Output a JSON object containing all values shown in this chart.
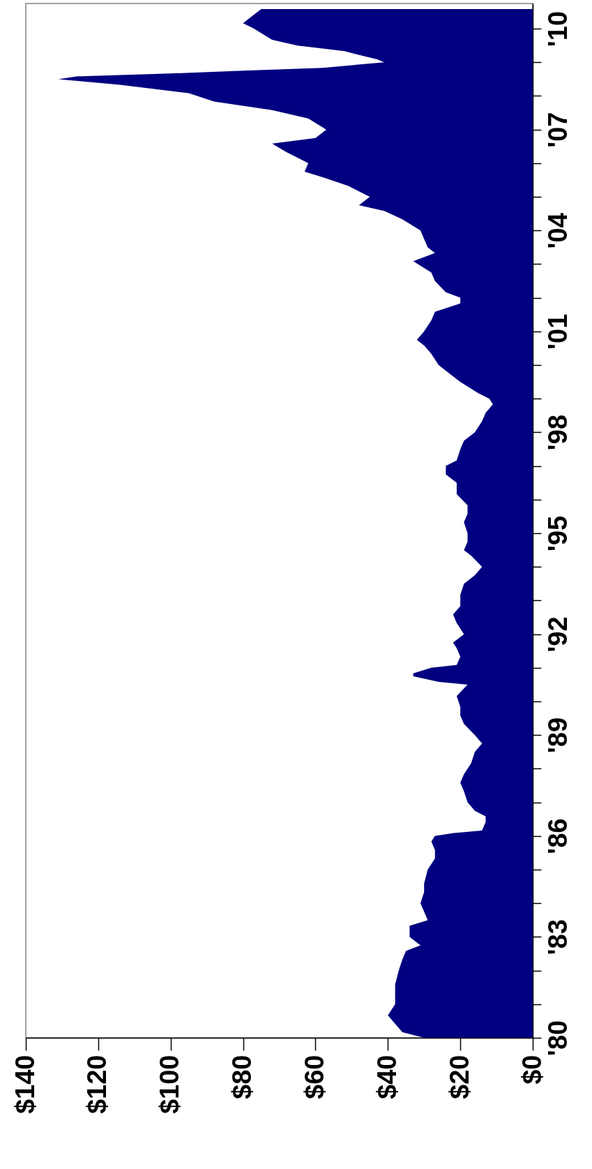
{
  "chart_data": {
    "type": "area",
    "color": "#000080",
    "x": [
      "1980-01",
      "1980-03",
      "1980-06",
      "1980-09",
      "1981-01",
      "1981-05",
      "1981-08",
      "1982-01",
      "1982-05",
      "1982-08",
      "1982-10",
      "1983-01",
      "1983-05",
      "1983-07",
      "1983-10",
      "1984-01",
      "1984-05",
      "1984-08",
      "1985-01",
      "1985-05",
      "1985-08",
      "1985-11",
      "1986-01",
      "1986-02",
      "1986-03",
      "1986-06",
      "1986-08",
      "1986-10",
      "1987-01",
      "1987-05",
      "1987-08",
      "1987-11",
      "1988-03",
      "1988-07",
      "1988-10",
      "1989-01",
      "1989-05",
      "1989-08",
      "1989-11",
      "1990-03",
      "1990-07",
      "1990-08",
      "1990-10",
      "1990-11",
      "1991-01",
      "1991-02",
      "1991-05",
      "1991-08",
      "1991-10",
      "1992-01",
      "1992-05",
      "1992-08",
      "1992-11",
      "1993-03",
      "1993-07",
      "1993-10",
      "1994-01",
      "1994-05",
      "1994-07",
      "1994-10",
      "1995-01",
      "1995-05",
      "1995-08",
      "1995-11",
      "1996-03",
      "1996-07",
      "1996-10",
      "1997-01",
      "1997-03",
      "1997-07",
      "1997-10",
      "1998-01",
      "1998-05",
      "1998-08",
      "1998-11",
      "1999-01",
      "1999-03",
      "1999-07",
      "1999-10",
      "2000-01",
      "2000-05",
      "2000-08",
      "2000-10",
      "2001-01",
      "2001-05",
      "2001-08",
      "2001-11",
      "2002-01",
      "2002-03",
      "2002-07",
      "2002-10",
      "2003-02",
      "2003-05",
      "2003-07",
      "2003-10",
      "2004-01",
      "2004-05",
      "2004-08",
      "2004-10",
      "2005-01",
      "2005-05",
      "2005-08",
      "2005-10",
      "2006-01",
      "2006-05",
      "2006-08",
      "2006-10",
      "2007-01",
      "2007-05",
      "2007-08",
      "2007-11",
      "2008-02",
      "2008-05",
      "2008-07",
      "2008-08",
      "2008-09",
      "2008-10",
      "2008-11",
      "2009-01",
      "2009-02",
      "2009-05",
      "2009-07",
      "2009-09",
      "2010-01",
      "2010-03",
      "2010-06",
      "2010-08"
    ],
    "values": [
      30,
      36,
      38,
      40,
      38,
      38,
      38,
      37,
      36,
      35,
      31,
      34,
      34,
      29,
      30,
      31,
      30,
      30,
      29,
      27,
      27,
      28,
      27,
      22,
      14,
      13,
      13,
      16,
      18,
      19,
      20,
      19,
      17,
      16,
      14,
      16,
      19,
      20,
      20,
      21,
      18,
      26,
      33,
      33,
      28,
      21,
      20,
      21,
      22,
      19,
      21,
      22,
      20,
      20,
      19,
      16,
      14,
      17,
      19,
      18,
      18,
      19,
      18,
      18,
      21,
      21,
      24,
      24,
      21,
      20,
      19,
      16,
      14,
      13,
      11,
      12,
      15,
      20,
      23,
      26,
      28,
      30,
      32,
      30,
      28,
      27,
      20,
      20,
      24,
      27,
      28,
      33,
      27,
      29,
      30,
      31,
      36,
      41,
      48,
      45,
      51,
      58,
      63,
      62,
      68,
      72,
      60,
      57,
      62,
      72,
      88,
      95,
      114,
      131,
      126,
      100,
      80,
      58,
      41,
      43,
      52,
      65,
      72,
      77,
      80,
      77,
      75
    ],
    "orientation": "horizontal",
    "xlim": [
      140,
      0
    ],
    "xticks": [
      {
        "value": 140,
        "label": "$140"
      },
      {
        "value": 120,
        "label": "$120"
      },
      {
        "value": 100,
        "label": "$100"
      },
      {
        "value": 80,
        "label": "$80"
      },
      {
        "value": 60,
        "label": "$60"
      },
      {
        "value": 40,
        "label": "$40"
      },
      {
        "value": 20,
        "label": "$20"
      },
      {
        "value": 0,
        "label": "$0"
      }
    ],
    "ylim": [
      "1980-01",
      "2010-10"
    ],
    "yticks": [
      {
        "value": "1980",
        "label": "'80"
      },
      {
        "value": "1981",
        "label": null
      },
      {
        "value": "1982",
        "label": null
      },
      {
        "value": "1983",
        "label": "'83"
      },
      {
        "value": "1984",
        "label": null
      },
      {
        "value": "1985",
        "label": null
      },
      {
        "value": "1986",
        "label": "'86"
      },
      {
        "value": "1987",
        "label": null
      },
      {
        "value": "1988",
        "label": null
      },
      {
        "value": "1989",
        "label": "'89"
      },
      {
        "value": "1990",
        "label": null
      },
      {
        "value": "1991",
        "label": null
      },
      {
        "value": "1992",
        "label": "'92"
      },
      {
        "value": "1993",
        "label": null
      },
      {
        "value": "1994",
        "label": null
      },
      {
        "value": "1995",
        "label": "'95"
      },
      {
        "value": "1996",
        "label": null
      },
      {
        "value": "1997",
        "label": null
      },
      {
        "value": "1998",
        "label": "'98"
      },
      {
        "value": "1999",
        "label": null
      },
      {
        "value": "2000",
        "label": null
      },
      {
        "value": "2001",
        "label": "'01"
      },
      {
        "value": "2002",
        "label": null
      },
      {
        "value": "2003",
        "label": null
      },
      {
        "value": "2004",
        "label": "'04"
      },
      {
        "value": "2005",
        "label": null
      },
      {
        "value": "2006",
        "label": null
      },
      {
        "value": "2007",
        "label": "'07"
      },
      {
        "value": "2008",
        "label": null
      },
      {
        "value": "2009",
        "label": null
      },
      {
        "value": "2010",
        "label": "'10"
      }
    ]
  }
}
